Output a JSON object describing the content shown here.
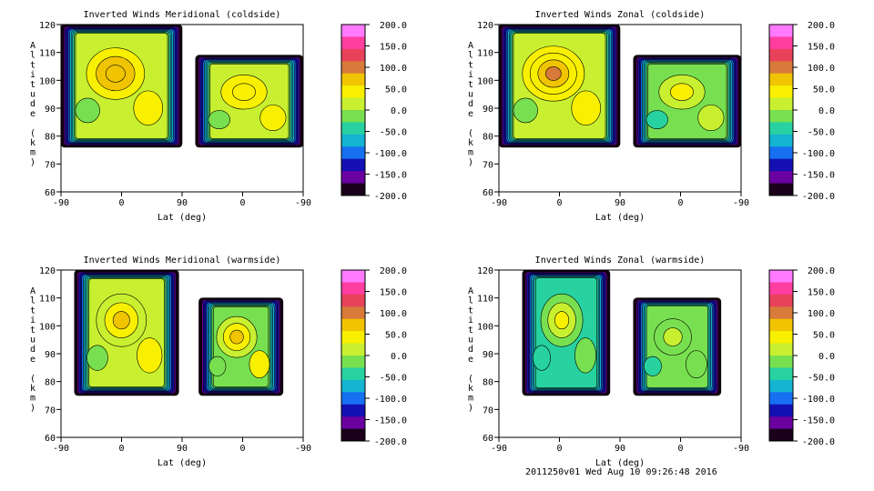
{
  "footer_text": "2011250v01 Wed Aug 10 09:26:48 2016",
  "colorbar": {
    "labels": [
      "200.0",
      "150.0",
      "100.0",
      "50.0",
      "0.0",
      "-50.0",
      "-100.0",
      "-150.0",
      "-200.0"
    ],
    "range": [
      -200,
      200
    ],
    "colors": [
      "#ff7aff",
      "#ff3ea0",
      "#e8425a",
      "#d87a3a",
      "#f0c400",
      "#f8f000",
      "#c8f030",
      "#78e050",
      "#28d2a0",
      "#14b4d2",
      "#1670f0",
      "#1410b4",
      "#6a00a0",
      "#1a001a"
    ]
  },
  "chart_data": [
    {
      "type": "contour",
      "title": "Inverted Winds Meridional (coldside)",
      "xlabel": "Lat (deg)",
      "ylabel": "Altitude (km)",
      "x_ticks": [
        "-90",
        "0",
        "90",
        "0",
        "-90"
      ],
      "y_ticks": [
        "60",
        "70",
        "80",
        "90",
        "100",
        "110",
        "120"
      ],
      "ylim": [
        60,
        120
      ],
      "colorbar_range": [
        -200,
        200
      ],
      "regions": [
        {
          "lat_from": -90,
          "lat_to": 90,
          "alt_bottom": 76,
          "alt_top": 120,
          "typical_value": 20,
          "peak_value": 80
        },
        {
          "lat_from": 70,
          "lat_to": -90,
          "alt_bottom": 76,
          "alt_top": 109,
          "typical_value": 10,
          "peak_value": 60
        }
      ]
    },
    {
      "type": "contour",
      "title": "Inverted Winds Zonal (coldside)",
      "xlabel": "Lat (deg)",
      "ylabel": "Altitude (km)",
      "x_ticks": [
        "-90",
        "0",
        "90",
        "0",
        "-90"
      ],
      "y_ticks": [
        "60",
        "70",
        "80",
        "90",
        "100",
        "110",
        "120"
      ],
      "ylim": [
        60,
        120
      ],
      "colorbar_range": [
        -200,
        200
      ],
      "regions": [
        {
          "lat_from": -90,
          "lat_to": 90,
          "alt_bottom": 76,
          "alt_top": 120,
          "typical_value": 10,
          "peak_value": 100
        },
        {
          "lat_from": 70,
          "lat_to": -90,
          "alt_bottom": 76,
          "alt_top": 109,
          "typical_value": -10,
          "peak_value": 30
        }
      ]
    },
    {
      "type": "contour",
      "title": "Inverted Winds Meridional (warmside)",
      "xlabel": "Lat (deg)",
      "ylabel": "Altitude (km)",
      "x_ticks": [
        "-90",
        "0",
        "90",
        "0",
        "-90"
      ],
      "y_ticks": [
        "60",
        "70",
        "80",
        "90",
        "100",
        "110",
        "120"
      ],
      "ylim": [
        60,
        120
      ],
      "colorbar_range": [
        -200,
        200
      ],
      "regions": [
        {
          "lat_from": -70,
          "lat_to": 85,
          "alt_bottom": 75,
          "alt_top": 120,
          "typical_value": 5,
          "peak_value": 80
        },
        {
          "lat_from": 65,
          "lat_to": -60,
          "alt_bottom": 75,
          "alt_top": 110,
          "typical_value": 0,
          "peak_value": 60
        }
      ]
    },
    {
      "type": "contour",
      "title": "Inverted Winds Zonal (warmside)",
      "xlabel": "Lat (deg)",
      "ylabel": "Altitude (km)",
      "x_ticks": [
        "-90",
        "0",
        "90",
        "0",
        "-90"
      ],
      "y_ticks": [
        "60",
        "70",
        "80",
        "90",
        "100",
        "110",
        "120"
      ],
      "ylim": [
        60,
        120
      ],
      "colorbar_range": [
        -200,
        200
      ],
      "regions": [
        {
          "lat_from": -55,
          "lat_to": 75,
          "alt_bottom": 75,
          "alt_top": 120,
          "typical_value": -30,
          "peak_value": 30
        },
        {
          "lat_from": 70,
          "lat_to": -60,
          "alt_bottom": 75,
          "alt_top": 110,
          "typical_value": -20,
          "peak_value": 20
        }
      ]
    }
  ]
}
